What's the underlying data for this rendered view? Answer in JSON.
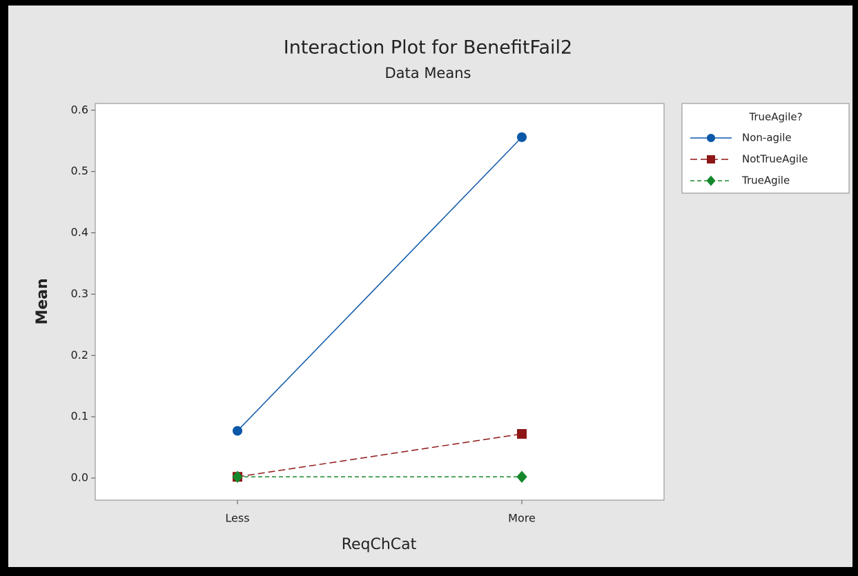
{
  "chart_data": {
    "type": "line",
    "title": "Interaction Plot for BenefitFail2",
    "subtitle": "Data Means",
    "x_label": "ReqChCat",
    "y_label": "Mean",
    "categories": [
      "Less",
      "More"
    ],
    "series": [
      {
        "name": "Non-agile",
        "color": "#0b57a8",
        "marker": "circle",
        "linestyle": "solid",
        "values": [
          0.077,
          0.556
        ]
      },
      {
        "name": "NotTrueAgile",
        "color": "#8e1616",
        "marker": "square",
        "linestyle": "dashed",
        "values": [
          0.002,
          0.072
        ]
      },
      {
        "name": "TrueAgile",
        "color": "#16882c",
        "marker": "diamond",
        "linestyle": "dotted",
        "values": [
          0.002,
          0.002
        ]
      }
    ],
    "legend_title": "TrueAgile?",
    "legend": "right",
    "ylim": [
      -0.036,
      0.611
    ],
    "yticks": [
      {
        "value": 0,
        "label": "0.0"
      },
      0.1,
      0.2,
      0.3,
      0.4,
      0.5,
      0.6
    ]
  }
}
